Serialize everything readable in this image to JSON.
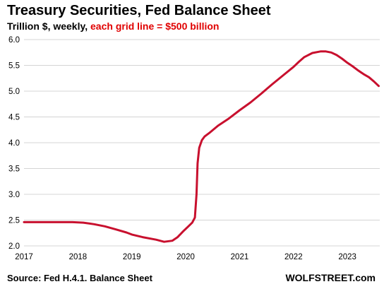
{
  "header": {
    "title": "Treasury Securities, Fed Balance Sheet",
    "subtitle_prefix": "Trillion $, weekly, ",
    "subtitle_highlight": "each grid line = $500 billion"
  },
  "footer": {
    "source": "Source: Fed H.4.1. Balance Sheet",
    "brand": "WOLFSTREET.com"
  },
  "colors": {
    "line": "#c8102e",
    "grid": "#d4d4d4",
    "highlight": "#e00000"
  },
  "chart_data": {
    "type": "line",
    "title": "Treasury Securities, Fed Balance Sheet",
    "ylabel": "Trillion $",
    "xlabel": "",
    "ylim": [
      2.0,
      6.0
    ],
    "xlim": [
      2017.0,
      2023.6
    ],
    "y_ticks": [
      "2.0",
      "2.5",
      "3.0",
      "3.5",
      "4.0",
      "4.5",
      "5.0",
      "5.5",
      "6.0"
    ],
    "x_ticks": [
      "2017",
      "2018",
      "2019",
      "2020",
      "2021",
      "2022",
      "2023"
    ],
    "grid": true,
    "series": [
      {
        "x": [
          2017.0,
          2017.5,
          2017.9,
          2018.1,
          2018.3,
          2018.5,
          2018.7,
          2018.9,
          2019.0,
          2019.2,
          2019.45,
          2019.6,
          2019.75,
          2019.85,
          2019.95,
          2020.05,
          2020.12,
          2020.17,
          2020.2,
          2020.22,
          2020.25,
          2020.3,
          2020.35,
          2020.45,
          2020.6,
          2020.8,
          2021.0,
          2021.2,
          2021.4,
          2021.6,
          2021.8,
          2022.0,
          2022.1,
          2022.2,
          2022.35,
          2022.5,
          2022.6,
          2022.7,
          2022.8,
          2022.9,
          2023.0,
          2023.1,
          2023.2,
          2023.3,
          2023.4,
          2023.5,
          2023.58
        ],
        "y": [
          2.46,
          2.46,
          2.46,
          2.45,
          2.42,
          2.38,
          2.32,
          2.26,
          2.22,
          2.17,
          2.12,
          2.08,
          2.1,
          2.17,
          2.28,
          2.38,
          2.45,
          2.55,
          3.0,
          3.6,
          3.9,
          4.05,
          4.12,
          4.2,
          4.33,
          4.47,
          4.63,
          4.78,
          4.95,
          5.13,
          5.3,
          5.47,
          5.57,
          5.66,
          5.74,
          5.77,
          5.77,
          5.75,
          5.7,
          5.63,
          5.55,
          5.48,
          5.4,
          5.33,
          5.27,
          5.18,
          5.1
        ]
      }
    ]
  }
}
